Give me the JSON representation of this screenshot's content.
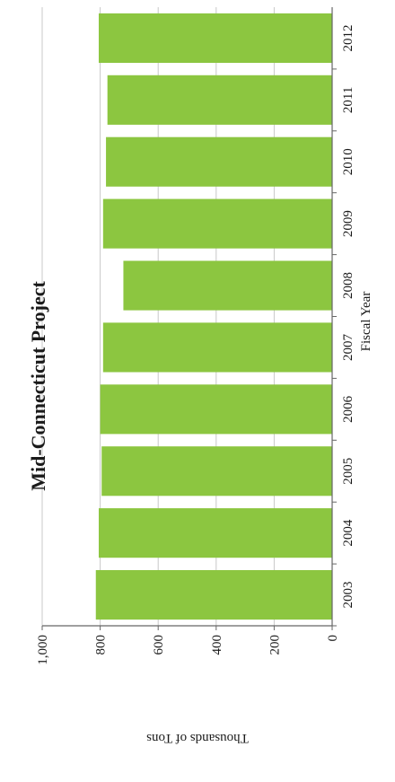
{
  "chart_data": {
    "type": "bar",
    "title": "Mid-Connecticut Project",
    "xlabel": "Fiscal Year",
    "ylabel": "Thousands of Tons",
    "categories": [
      "2003",
      "2004",
      "2005",
      "2006",
      "2007",
      "2008",
      "2009",
      "2010",
      "2011",
      "2012"
    ],
    "values": [
      815,
      805,
      795,
      800,
      790,
      720,
      790,
      780,
      775,
      805
    ],
    "ylim": [
      0,
      1000
    ],
    "yticks": [
      "0",
      "200",
      "400",
      "600",
      "800",
      "1,000"
    ],
    "grid": true,
    "orientation": "rotated 90° counter-clockwise",
    "colors": {
      "bar": "#8cc640",
      "grid": "#c8c8c8",
      "axis": "#666666"
    }
  }
}
